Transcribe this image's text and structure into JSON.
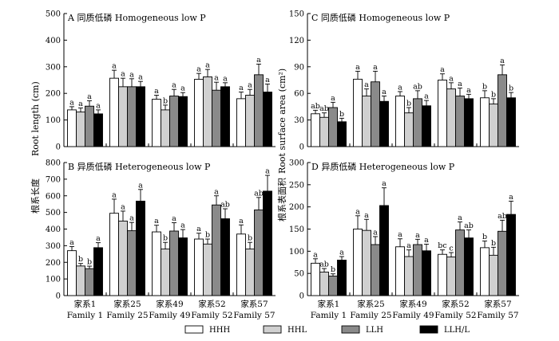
{
  "figure": {
    "ylabel_left_cn": "根系长度",
    "ylabel_left_en": "Root length (cm)",
    "ylabel_right_cn": "根系表面积",
    "ylabel_right_en": "Root surface area (cm²)"
  },
  "categories": [
    {
      "cn": "家系1",
      "en": "Family 1"
    },
    {
      "cn": "家系25",
      "en": "Family 25"
    },
    {
      "cn": "家系49",
      "en": "Family 49"
    },
    {
      "cn": "家系52",
      "en": "Family 52"
    },
    {
      "cn": "家系57",
      "en": "Family 57"
    }
  ],
  "legend": [
    {
      "label": "HHH",
      "color": "#ffffff"
    },
    {
      "label": "HHL",
      "color": "#d0d0d0"
    },
    {
      "label": "LLH",
      "color": "#8a8a8a"
    },
    {
      "label": "LLH/L",
      "color": "#000000"
    }
  ],
  "chart_data": [
    {
      "id": "A",
      "type": "bar",
      "title": "A 同质低磷 Homogeneous low P",
      "ylim": [
        0,
        500
      ],
      "yticks": [
        "0",
        "100",
        "200",
        "300",
        "400",
        "500"
      ],
      "categories": [
        "Family 1",
        "Family 25",
        "Family 49",
        "Family 52",
        "Family 57"
      ],
      "series": [
        {
          "name": "HHH",
          "values": [
            138,
            257,
            178,
            253,
            180
          ],
          "errors": [
            12,
            30,
            15,
            22,
            25
          ],
          "letters": [
            "a",
            "a",
            "a",
            "a",
            "a"
          ]
        },
        {
          "name": "HHL",
          "values": [
            130,
            225,
            138,
            262,
            193
          ],
          "errors": [
            15,
            32,
            18,
            28,
            22
          ],
          "letters": [
            "a",
            "a",
            "b",
            "a",
            "a"
          ]
        },
        {
          "name": "LLH",
          "values": [
            152,
            225,
            190,
            212,
            270
          ],
          "errors": [
            20,
            30,
            25,
            30,
            40
          ],
          "letters": [
            "a",
            "a",
            "a",
            "a",
            "a"
          ]
        },
        {
          "name": "LLH/L",
          "values": [
            123,
            225,
            188,
            225,
            205
          ],
          "errors": [
            15,
            20,
            15,
            15,
            30
          ],
          "letters": [
            "a",
            "a",
            "a",
            "a",
            "a"
          ]
        }
      ]
    },
    {
      "id": "B",
      "type": "bar",
      "title": "B 异质低磷 Heterogeneous low P",
      "ylim": [
        0,
        800
      ],
      "yticks": [
        "0",
        "100",
        "200",
        "300",
        "400",
        "500",
        "600",
        "700",
        "800"
      ],
      "categories": [
        "Family 1",
        "Family 25",
        "Family 49",
        "Family 52",
        "Family 57"
      ],
      "series": [
        {
          "name": "HHH",
          "values": [
            270,
            495,
            383,
            340,
            370
          ],
          "errors": [
            25,
            85,
            40,
            35,
            55
          ],
          "letters": [
            "a",
            "a",
            "a",
            "a",
            "a"
          ]
        },
        {
          "name": "HHL",
          "values": [
            178,
            448,
            280,
            310,
            280
          ],
          "errors": [
            15,
            60,
            40,
            30,
            40
          ],
          "letters": [
            "b",
            "a",
            "b",
            "b",
            "b"
          ]
        },
        {
          "name": "LLH",
          "values": [
            162,
            390,
            388,
            545,
            515
          ],
          "errors": [
            15,
            50,
            50,
            55,
            75
          ],
          "letters": [
            "b",
            "a",
            "a",
            "a",
            "ab"
          ]
        },
        {
          "name": "LLH/L",
          "values": [
            288,
            568,
            347,
            462,
            628
          ],
          "errors": [
            30,
            70,
            50,
            60,
            95
          ],
          "letters": [
            "a",
            "a",
            "a",
            "ab",
            "a"
          ]
        }
      ]
    },
    {
      "id": "C",
      "type": "bar",
      "title": "C 同质低磷 Homogeneous low P",
      "ylim": [
        0,
        150
      ],
      "yticks": [
        "0",
        "30",
        "60",
        "90",
        "120",
        "150"
      ],
      "categories": [
        "Family 1",
        "Family 25",
        "Family 49",
        "Family 52",
        "Family 57"
      ],
      "series": [
        {
          "name": "HHH",
          "values": [
            37,
            76,
            57,
            75,
            55
          ],
          "errors": [
            4,
            9,
            5,
            7,
            8
          ],
          "letters": [
            "ab",
            "a",
            "a",
            "a",
            "b"
          ]
        },
        {
          "name": "HHL",
          "values": [
            33,
            57,
            38,
            65,
            48
          ],
          "errors": [
            5,
            8,
            6,
            7,
            6
          ],
          "letters": [
            "ab",
            "a",
            "b",
            "a",
            "b"
          ]
        },
        {
          "name": "LLH",
          "values": [
            44,
            73,
            54,
            57,
            81
          ],
          "errors": [
            6,
            12,
            9,
            9,
            11
          ],
          "letters": [
            "a",
            "a",
            "ab",
            "a",
            "a"
          ]
        },
        {
          "name": "LLH/L",
          "values": [
            28,
            51,
            46,
            54,
            55
          ],
          "errors": [
            4,
            6,
            6,
            5,
            6
          ],
          "letters": [
            "b",
            "a",
            "a",
            "a",
            "b"
          ]
        }
      ]
    },
    {
      "id": "D",
      "type": "bar",
      "title": "D 异质低磷 Heterogeneous low P",
      "ylim": [
        0,
        300
      ],
      "yticks": [
        "0",
        "50",
        "100",
        "150",
        "200",
        "250",
        "300"
      ],
      "categories": [
        "Family 1",
        "Family 25",
        "Family 49",
        "Family 52",
        "Family 57"
      ],
      "series": [
        {
          "name": "HHH",
          "values": [
            73,
            150,
            110,
            93,
            108
          ],
          "errors": [
            10,
            30,
            18,
            10,
            15
          ],
          "letters": [
            "a",
            "a",
            "a",
            "bc",
            "b"
          ]
        },
        {
          "name": "HHL",
          "values": [
            53,
            147,
            88,
            87,
            91
          ],
          "errors": [
            8,
            25,
            15,
            10,
            18
          ],
          "letters": [
            "ab",
            "a",
            "a",
            "c",
            "b"
          ]
        },
        {
          "name": "LLH",
          "values": [
            44,
            115,
            115,
            148,
            145
          ],
          "errors": [
            5,
            18,
            12,
            18,
            25
          ],
          "letters": [
            "b",
            "a",
            "a",
            "a",
            "ab"
          ]
        },
        {
          "name": "LLH/L",
          "values": [
            80,
            203,
            101,
            130,
            183
          ],
          "errors": [
            8,
            40,
            15,
            18,
            30
          ],
          "letters": [
            "a",
            "a",
            "a",
            "ab",
            "a"
          ]
        }
      ]
    }
  ]
}
